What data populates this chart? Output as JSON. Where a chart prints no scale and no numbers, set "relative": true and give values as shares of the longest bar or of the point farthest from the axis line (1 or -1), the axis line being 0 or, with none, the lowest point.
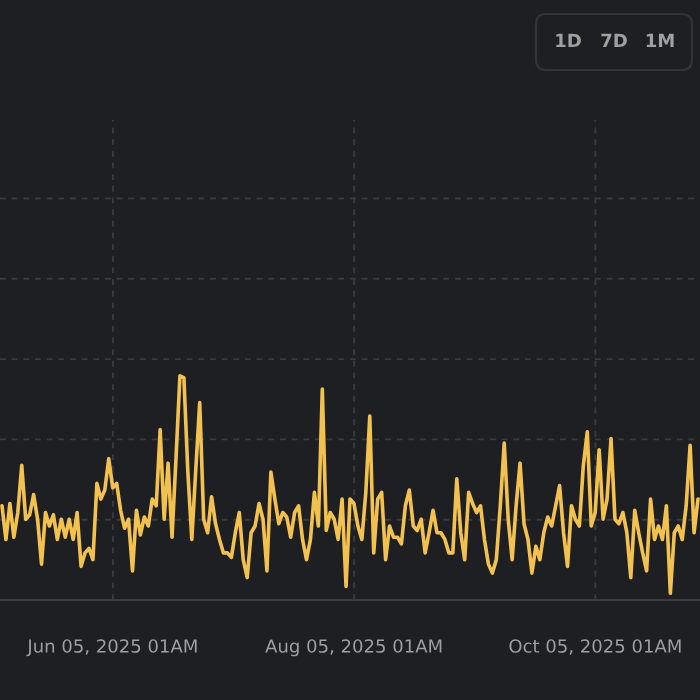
{
  "chart_data": {
    "type": "line",
    "relative": true,
    "grid": true,
    "legend": false,
    "marker": "none",
    "line_style": "solid",
    "annotations": [
      "1D",
      "7D",
      "1M"
    ],
    "xlim": [
      "2025-05-07T12:00",
      "2025-10-31T12:00"
    ],
    "xticks": [
      {
        "value": "2025-06-05T01:00",
        "label": "Jun 05, 2025 01AM"
      },
      {
        "value": "2025-08-05T01:00",
        "label": "Aug 05, 2025 01AM"
      },
      {
        "value": "2025-10-05T01:00",
        "label": "Oct 05, 2025 01AM"
      }
    ],
    "series": [
      {
        "color": "#f2c14e",
        "x": [
          "2025-05-08",
          "2025-05-09",
          "2025-05-10",
          "2025-05-11",
          "2025-05-12",
          "2025-05-13",
          "2025-05-14",
          "2025-05-15",
          "2025-05-16",
          "2025-05-17",
          "2025-05-18",
          "2025-05-19",
          "2025-05-20",
          "2025-05-21",
          "2025-05-22",
          "2025-05-23",
          "2025-05-24",
          "2025-05-25",
          "2025-05-26",
          "2025-05-27",
          "2025-05-28",
          "2025-05-29",
          "2025-05-30",
          "2025-05-31",
          "2025-06-01",
          "2025-06-02",
          "2025-06-03",
          "2025-06-04",
          "2025-06-05",
          "2025-06-06",
          "2025-06-07",
          "2025-06-08",
          "2025-06-09",
          "2025-06-10",
          "2025-06-11",
          "2025-06-12",
          "2025-06-13",
          "2025-06-14",
          "2025-06-15",
          "2025-06-16",
          "2025-06-17",
          "2025-06-18",
          "2025-06-19",
          "2025-06-20",
          "2025-06-21",
          "2025-06-22",
          "2025-06-23",
          "2025-06-24",
          "2025-06-25",
          "2025-06-26",
          "2025-06-27",
          "2025-06-28",
          "2025-06-29",
          "2025-06-30",
          "2025-07-01",
          "2025-07-02",
          "2025-07-03",
          "2025-07-04",
          "2025-07-05",
          "2025-07-06",
          "2025-07-07",
          "2025-07-08",
          "2025-07-09",
          "2025-07-10",
          "2025-07-11",
          "2025-07-12",
          "2025-07-13",
          "2025-07-14",
          "2025-07-15",
          "2025-07-16",
          "2025-07-17",
          "2025-07-18",
          "2025-07-19",
          "2025-07-20",
          "2025-07-21",
          "2025-07-22",
          "2025-07-23",
          "2025-07-24",
          "2025-07-25",
          "2025-07-26",
          "2025-07-27",
          "2025-07-28",
          "2025-07-29",
          "2025-07-30",
          "2025-07-31",
          "2025-08-01",
          "2025-08-02",
          "2025-08-03",
          "2025-08-04",
          "2025-08-05",
          "2025-08-06",
          "2025-08-07",
          "2025-08-08",
          "2025-08-09",
          "2025-08-10",
          "2025-08-11",
          "2025-08-12",
          "2025-08-13",
          "2025-08-14",
          "2025-08-15",
          "2025-08-16",
          "2025-08-17",
          "2025-08-18",
          "2025-08-19",
          "2025-08-20",
          "2025-08-21",
          "2025-08-22",
          "2025-08-23",
          "2025-08-24",
          "2025-08-25",
          "2025-08-26",
          "2025-08-27",
          "2025-08-28",
          "2025-08-29",
          "2025-08-30",
          "2025-08-31",
          "2025-09-01",
          "2025-09-02",
          "2025-09-03",
          "2025-09-04",
          "2025-09-05",
          "2025-09-06",
          "2025-09-07",
          "2025-09-08",
          "2025-09-09",
          "2025-09-10",
          "2025-09-11",
          "2025-09-12",
          "2025-09-13",
          "2025-09-14",
          "2025-09-15",
          "2025-09-16",
          "2025-09-17",
          "2025-09-18",
          "2025-09-19",
          "2025-09-20",
          "2025-09-21",
          "2025-09-22",
          "2025-09-23",
          "2025-09-24",
          "2025-09-25",
          "2025-09-26",
          "2025-09-27",
          "2025-09-28",
          "2025-09-29",
          "2025-09-30",
          "2025-10-01",
          "2025-10-02",
          "2025-10-03",
          "2025-10-04",
          "2025-10-05",
          "2025-10-06",
          "2025-10-07",
          "2025-10-08",
          "2025-10-09",
          "2025-10-10",
          "2025-10-11",
          "2025-10-12",
          "2025-10-13",
          "2025-10-14",
          "2025-10-15",
          "2025-10-16",
          "2025-10-17",
          "2025-10-18",
          "2025-10-19",
          "2025-10-20",
          "2025-10-21",
          "2025-10-22",
          "2025-10-23",
          "2025-10-24",
          "2025-10-25",
          "2025-10-26",
          "2025-10-27",
          "2025-10-28",
          "2025-10-29",
          "2025-10-30",
          "2025-10-31"
        ],
        "values": [
          0.42,
          0.27,
          0.43,
          0.28,
          0.39,
          0.6,
          0.36,
          0.38,
          0.47,
          0.36,
          0.16,
          0.39,
          0.33,
          0.38,
          0.27,
          0.36,
          0.28,
          0.36,
          0.27,
          0.39,
          0.15,
          0.21,
          0.23,
          0.18,
          0.52,
          0.45,
          0.49,
          0.63,
          0.5,
          0.52,
          0.4,
          0.32,
          0.36,
          0.13,
          0.4,
          0.29,
          0.37,
          0.33,
          0.45,
          0.42,
          0.76,
          0.36,
          0.61,
          0.28,
          0.63,
          1.0,
          0.99,
          0.57,
          0.27,
          0.58,
          0.88,
          0.36,
          0.3,
          0.46,
          0.34,
          0.27,
          0.21,
          0.21,
          0.19,
          0.3,
          0.39,
          0.18,
          0.1,
          0.3,
          0.33,
          0.43,
          0.36,
          0.13,
          0.57,
          0.45,
          0.34,
          0.39,
          0.37,
          0.28,
          0.39,
          0.42,
          0.27,
          0.18,
          0.27,
          0.48,
          0.33,
          0.94,
          0.31,
          0.39,
          0.36,
          0.27,
          0.45,
          0.06,
          0.45,
          0.43,
          0.33,
          0.27,
          0.48,
          0.82,
          0.21,
          0.45,
          0.48,
          0.18,
          0.33,
          0.28,
          0.28,
          0.25,
          0.42,
          0.49,
          0.33,
          0.31,
          0.36,
          0.21,
          0.3,
          0.4,
          0.3,
          0.3,
          0.27,
          0.21,
          0.21,
          0.54,
          0.3,
          0.18,
          0.48,
          0.43,
          0.39,
          0.42,
          0.27,
          0.16,
          0.12,
          0.18,
          0.42,
          0.7,
          0.36,
          0.18,
          0.42,
          0.61,
          0.34,
          0.27,
          0.12,
          0.24,
          0.18,
          0.3,
          0.37,
          0.33,
          0.42,
          0.51,
          0.3,
          0.15,
          0.42,
          0.36,
          0.33,
          0.6,
          0.75,
          0.33,
          0.39,
          0.67,
          0.36,
          0.45,
          0.72,
          0.36,
          0.34,
          0.39,
          0.3,
          0.1,
          0.4,
          0.3,
          0.21,
          0.13,
          0.45,
          0.27,
          0.33,
          0.27,
          0.42,
          0.03,
          0.3,
          0.33,
          0.27,
          0.42,
          0.69,
          0.3,
          0.45
        ]
      }
    ]
  }
}
